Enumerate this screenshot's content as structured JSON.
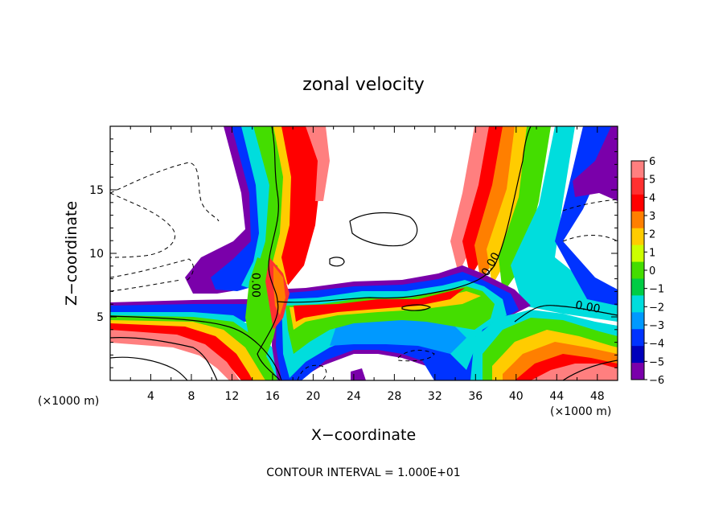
{
  "chart_data": {
    "type": "heatmap",
    "title": "zonal velocity",
    "xlabel": "X−coordinate",
    "ylabel": "Z−coordinate",
    "x_unit_left": "(×1000 m)",
    "x_unit_right": "(×1000 m)",
    "footer": "CONTOUR INTERVAL = 1.000E+01",
    "xlim": [
      0,
      50
    ],
    "ylim": [
      0,
      20
    ],
    "x_ticks": [
      4,
      8,
      12,
      16,
      20,
      24,
      28,
      32,
      36,
      40,
      44,
      48
    ],
    "x_tick_labels": [
      "4",
      "8",
      "12",
      "16",
      "20",
      "24",
      "28",
      "32",
      "36",
      "40",
      "44",
      "48"
    ],
    "y_ticks": [
      5,
      10,
      15
    ],
    "y_tick_labels": [
      "5",
      "10",
      "15"
    ],
    "colorbar": {
      "levels": [
        6,
        5,
        4,
        3,
        2,
        1,
        0,
        -1,
        -2,
        -3,
        -4,
        -5,
        -6
      ],
      "labels": [
        "6",
        "5",
        "4",
        "3",
        "2",
        "1",
        "0",
        "−1",
        "−2",
        "−3",
        "−4",
        "−5",
        "−6"
      ],
      "colors": [
        "#ff7f7f",
        "#ff3030",
        "#ff0000",
        "#ff7f00",
        "#ffcc00",
        "#ccff00",
        "#44dd00",
        "#00cc44",
        "#00dddd",
        "#0099ff",
        "#0033ff",
        "#0000bb",
        "#7a00aa"
      ]
    },
    "contour_labels": [
      {
        "text": "0.00",
        "x": 14.0,
        "y": 7.5
      },
      {
        "text": "0.00",
        "x": 37.8,
        "y": 9.0
      },
      {
        "text": "0.00",
        "x": 47.0,
        "y": 5.5
      }
    ],
    "grid": false
  }
}
